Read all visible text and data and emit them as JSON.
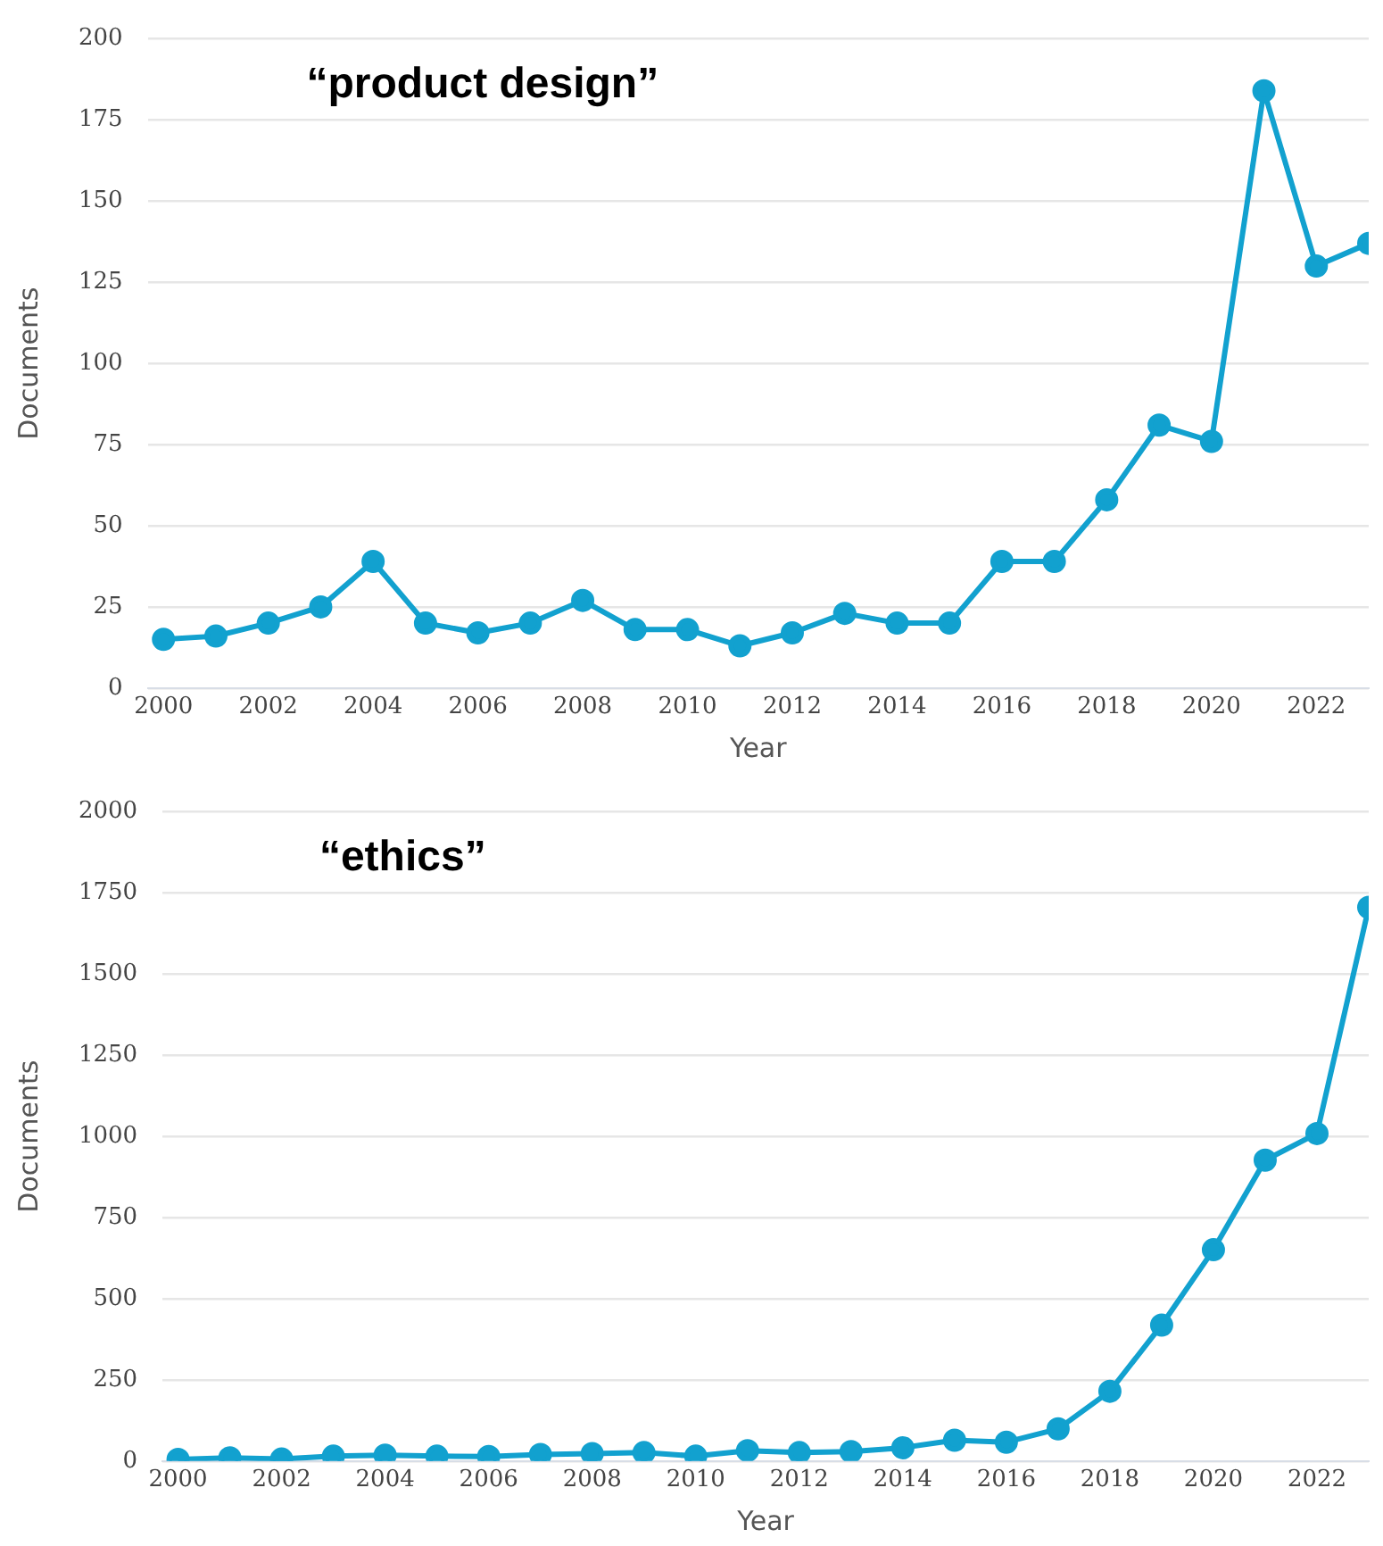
{
  "chart_data": [
    {
      "type": "line",
      "title": "“product design”",
      "xlabel": "Year",
      "ylabel": "Documents",
      "x": [
        2000,
        2001,
        2002,
        2003,
        2004,
        2005,
        2006,
        2007,
        2008,
        2009,
        2010,
        2011,
        2012,
        2013,
        2014,
        2015,
        2016,
        2017,
        2018,
        2019,
        2020,
        2021,
        2022,
        2023
      ],
      "series": [
        {
          "color": "#12a1cf",
          "values": [
            15,
            16,
            20,
            25,
            39,
            20,
            17,
            20,
            27,
            18,
            18,
            13,
            17,
            23,
            20,
            20,
            39,
            39,
            58,
            81,
            76,
            184,
            130,
            137
          ]
        }
      ],
      "xlim": [
        1999.7,
        2023
      ],
      "xticks": [
        2000,
        2002,
        2004,
        2006,
        2008,
        2010,
        2012,
        2014,
        2016,
        2018,
        2020,
        2022
      ],
      "ylim": [
        0,
        200
      ],
      "yticks": [
        0,
        25,
        50,
        75,
        100,
        125,
        150,
        175,
        200
      ],
      "grid": "y",
      "legend": false,
      "marker": "circle",
      "line_style": "solid"
    },
    {
      "type": "line",
      "title": "“ethics”",
      "xlabel": "Year",
      "ylabel": "Documents",
      "x": [
        2000,
        2001,
        2002,
        2003,
        2004,
        2005,
        2006,
        2007,
        2008,
        2009,
        2010,
        2011,
        2012,
        2013,
        2014,
        2015,
        2016,
        2017,
        2018,
        2019,
        2020,
        2021,
        2022,
        2023
      ],
      "series": [
        {
          "color": "#12a1cf",
          "values": [
            5,
            10,
            6,
            15,
            18,
            15,
            14,
            20,
            23,
            26,
            15,
            32,
            26,
            29,
            41,
            64,
            58,
            99,
            215,
            419,
            651,
            927,
            1009,
            1706
          ]
        }
      ],
      "xlim": [
        1999.7,
        2023
      ],
      "xticks": [
        2000,
        2002,
        2004,
        2006,
        2008,
        2010,
        2012,
        2014,
        2016,
        2018,
        2020,
        2022
      ],
      "ylim": [
        0,
        2000
      ],
      "yticks": [
        0,
        250,
        500,
        750,
        1000,
        1250,
        1500,
        1750,
        2000
      ],
      "grid": "y",
      "legend": false,
      "marker": "circle",
      "line_style": "solid"
    }
  ]
}
